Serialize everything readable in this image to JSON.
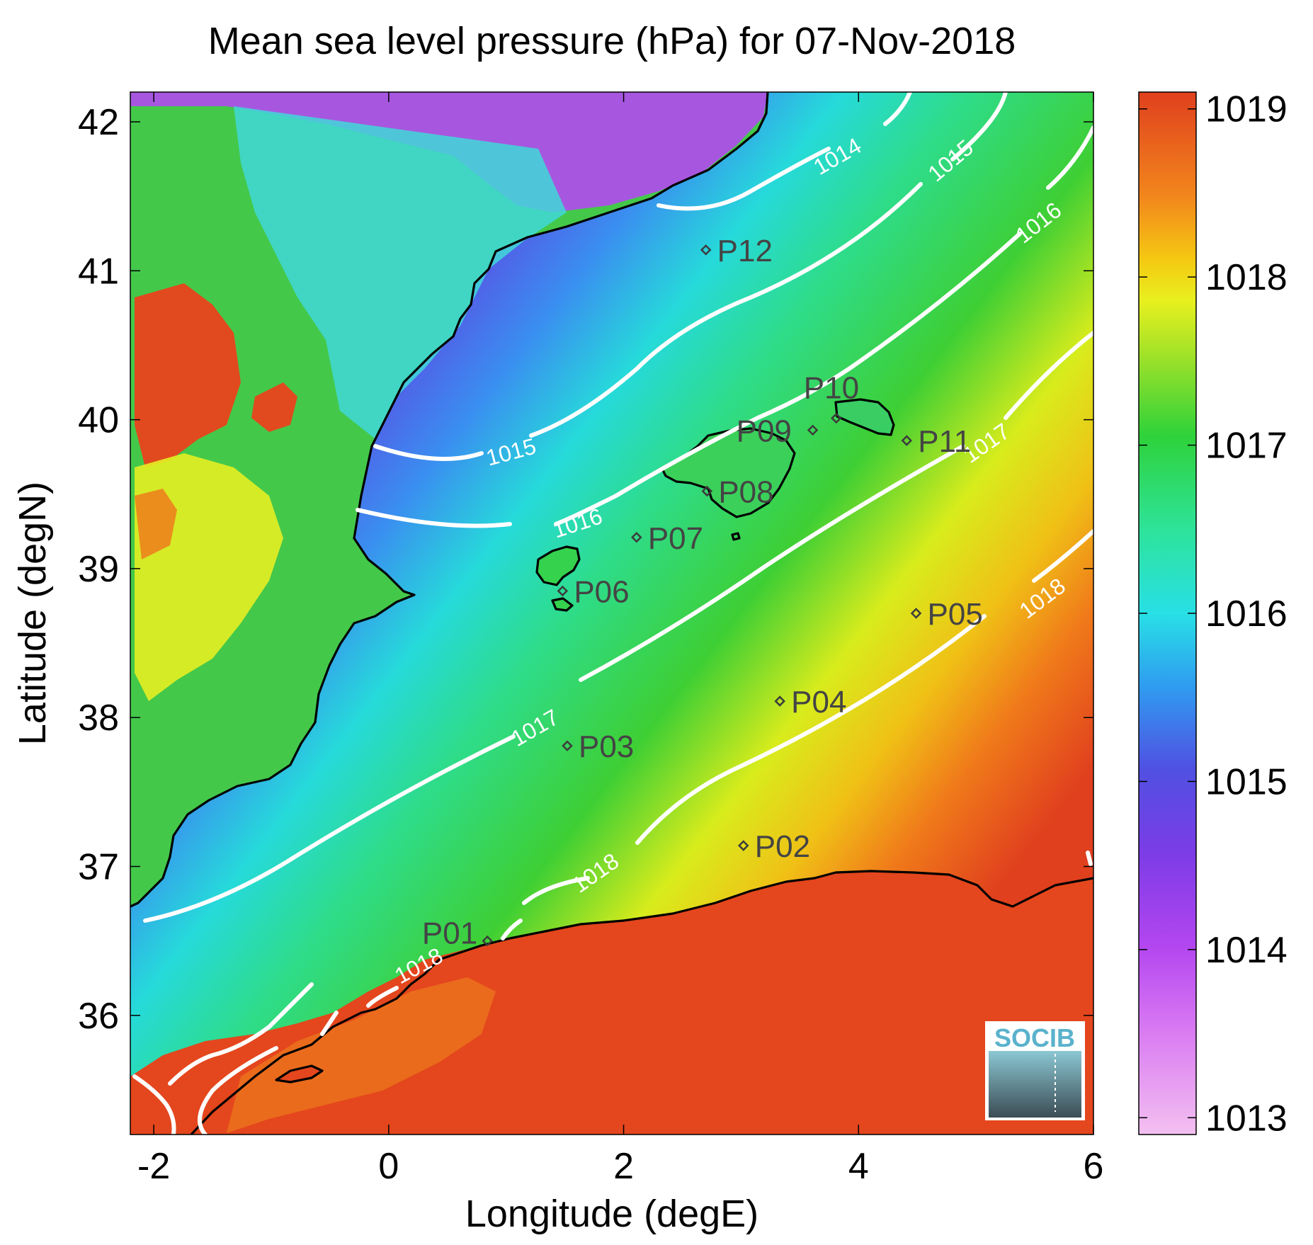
{
  "title": "Mean sea level pressure (hPa) for 07-Nov-2018",
  "xlabel": "Longitude (degE)",
  "ylabel": "Latitude (degN)",
  "logo_text": "SOCIB",
  "chart_data": {
    "type": "heatmap",
    "xlim": [
      -2.2,
      6.0
    ],
    "ylim": [
      35.2,
      42.2
    ],
    "x_ticks": [
      -2,
      0,
      2,
      4,
      6
    ],
    "y_ticks": [
      36,
      37,
      38,
      39,
      40,
      41,
      42
    ],
    "colorbar": {
      "range": [
        1012.9,
        1019.1
      ],
      "ticks": [
        1013,
        1014,
        1015,
        1016,
        1017,
        1018,
        1019
      ],
      "colormap": [
        "#f3c0f0",
        "#c14af0",
        "#8b3ce8",
        "#4a52e0",
        "#2aa8f0",
        "#28e6e0",
        "#2ee38c",
        "#2ed23a",
        "#8ee02e",
        "#e8f01e",
        "#f5c812",
        "#f2861c",
        "#e5541e",
        "#e0401e"
      ]
    },
    "contours": [
      {
        "level": 1014,
        "label": "1014"
      },
      {
        "level": 1015,
        "label": "1015"
      },
      {
        "level": 1016,
        "label": "1016"
      },
      {
        "level": 1017,
        "label": "1017"
      },
      {
        "level": 1018,
        "label": "1018"
      }
    ],
    "stations": [
      {
        "name": "P01",
        "lon": 0.84,
        "lat": 36.5
      },
      {
        "name": "P02",
        "lon": 3.02,
        "lat": 37.14
      },
      {
        "name": "P03",
        "lon": 1.52,
        "lat": 37.81
      },
      {
        "name": "P04",
        "lon": 3.33,
        "lat": 38.11
      },
      {
        "name": "P05",
        "lon": 4.49,
        "lat": 38.7
      },
      {
        "name": "P06",
        "lon": 1.48,
        "lat": 38.85
      },
      {
        "name": "P07",
        "lon": 2.11,
        "lat": 39.21
      },
      {
        "name": "P08",
        "lon": 2.71,
        "lat": 39.52
      },
      {
        "name": "P09",
        "lon": 3.61,
        "lat": 39.93
      },
      {
        "name": "P10",
        "lon": 3.81,
        "lat": 40.01
      },
      {
        "name": "P11",
        "lon": 4.41,
        "lat": 39.86
      },
      {
        "name": "P12",
        "lon": 2.7,
        "lat": 41.14
      }
    ]
  }
}
